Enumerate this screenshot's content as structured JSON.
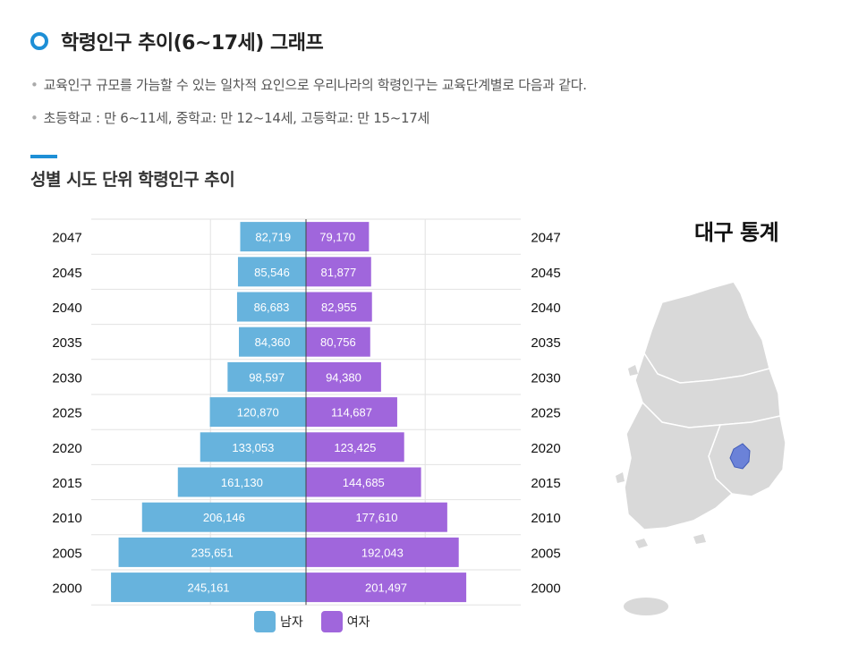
{
  "header": {
    "title": "학령인구 추이(6~17세) 그래프",
    "desc1": "교육인구 규모를 가늠할 수 있는 일차적 요인으로 우리나라의 학령인구는 교육단계별로 다음과 같다.",
    "desc2": "초등학교 : 만 6~11세, 중학교: 만 12~14세, 고등학교: 만 15~17세",
    "bullet": "•"
  },
  "section": {
    "title": "성별 시도 단위 학령인구 추이"
  },
  "map": {
    "title": "대구 통계",
    "highlight_color": "#6b82d8",
    "base_color": "#d9d9d9"
  },
  "chart_data": {
    "type": "bar",
    "orientation": "horizontal-population-pyramid",
    "categories": [
      "2047",
      "2045",
      "2040",
      "2035",
      "2030",
      "2025",
      "2020",
      "2015",
      "2010",
      "2005",
      "2000"
    ],
    "series": [
      {
        "name": "남자",
        "color": "#67b3dd",
        "values": [
          82719,
          85546,
          86683,
          84360,
          98597,
          120870,
          133053,
          161130,
          206146,
          235651,
          245161
        ],
        "labels": [
          "82,719",
          "85,546",
          "86,683",
          "84,360",
          "98,597",
          "120,870",
          "133,053",
          "161,130",
          "206,146",
          "235,651",
          "245,161"
        ]
      },
      {
        "name": "여자",
        "color": "#a066dc",
        "values": [
          79170,
          81877,
          82955,
          80756,
          94380,
          114687,
          123425,
          144685,
          177610,
          192043,
          201497
        ],
        "labels": [
          "79,170",
          "81,877",
          "82,955",
          "80,756",
          "94,380",
          "114,687",
          "123,425",
          "144,685",
          "177,610",
          "192,043",
          "201,497"
        ]
      }
    ],
    "xlim": [
      -270000,
      270000
    ],
    "grid": true,
    "legend": "bottom"
  }
}
